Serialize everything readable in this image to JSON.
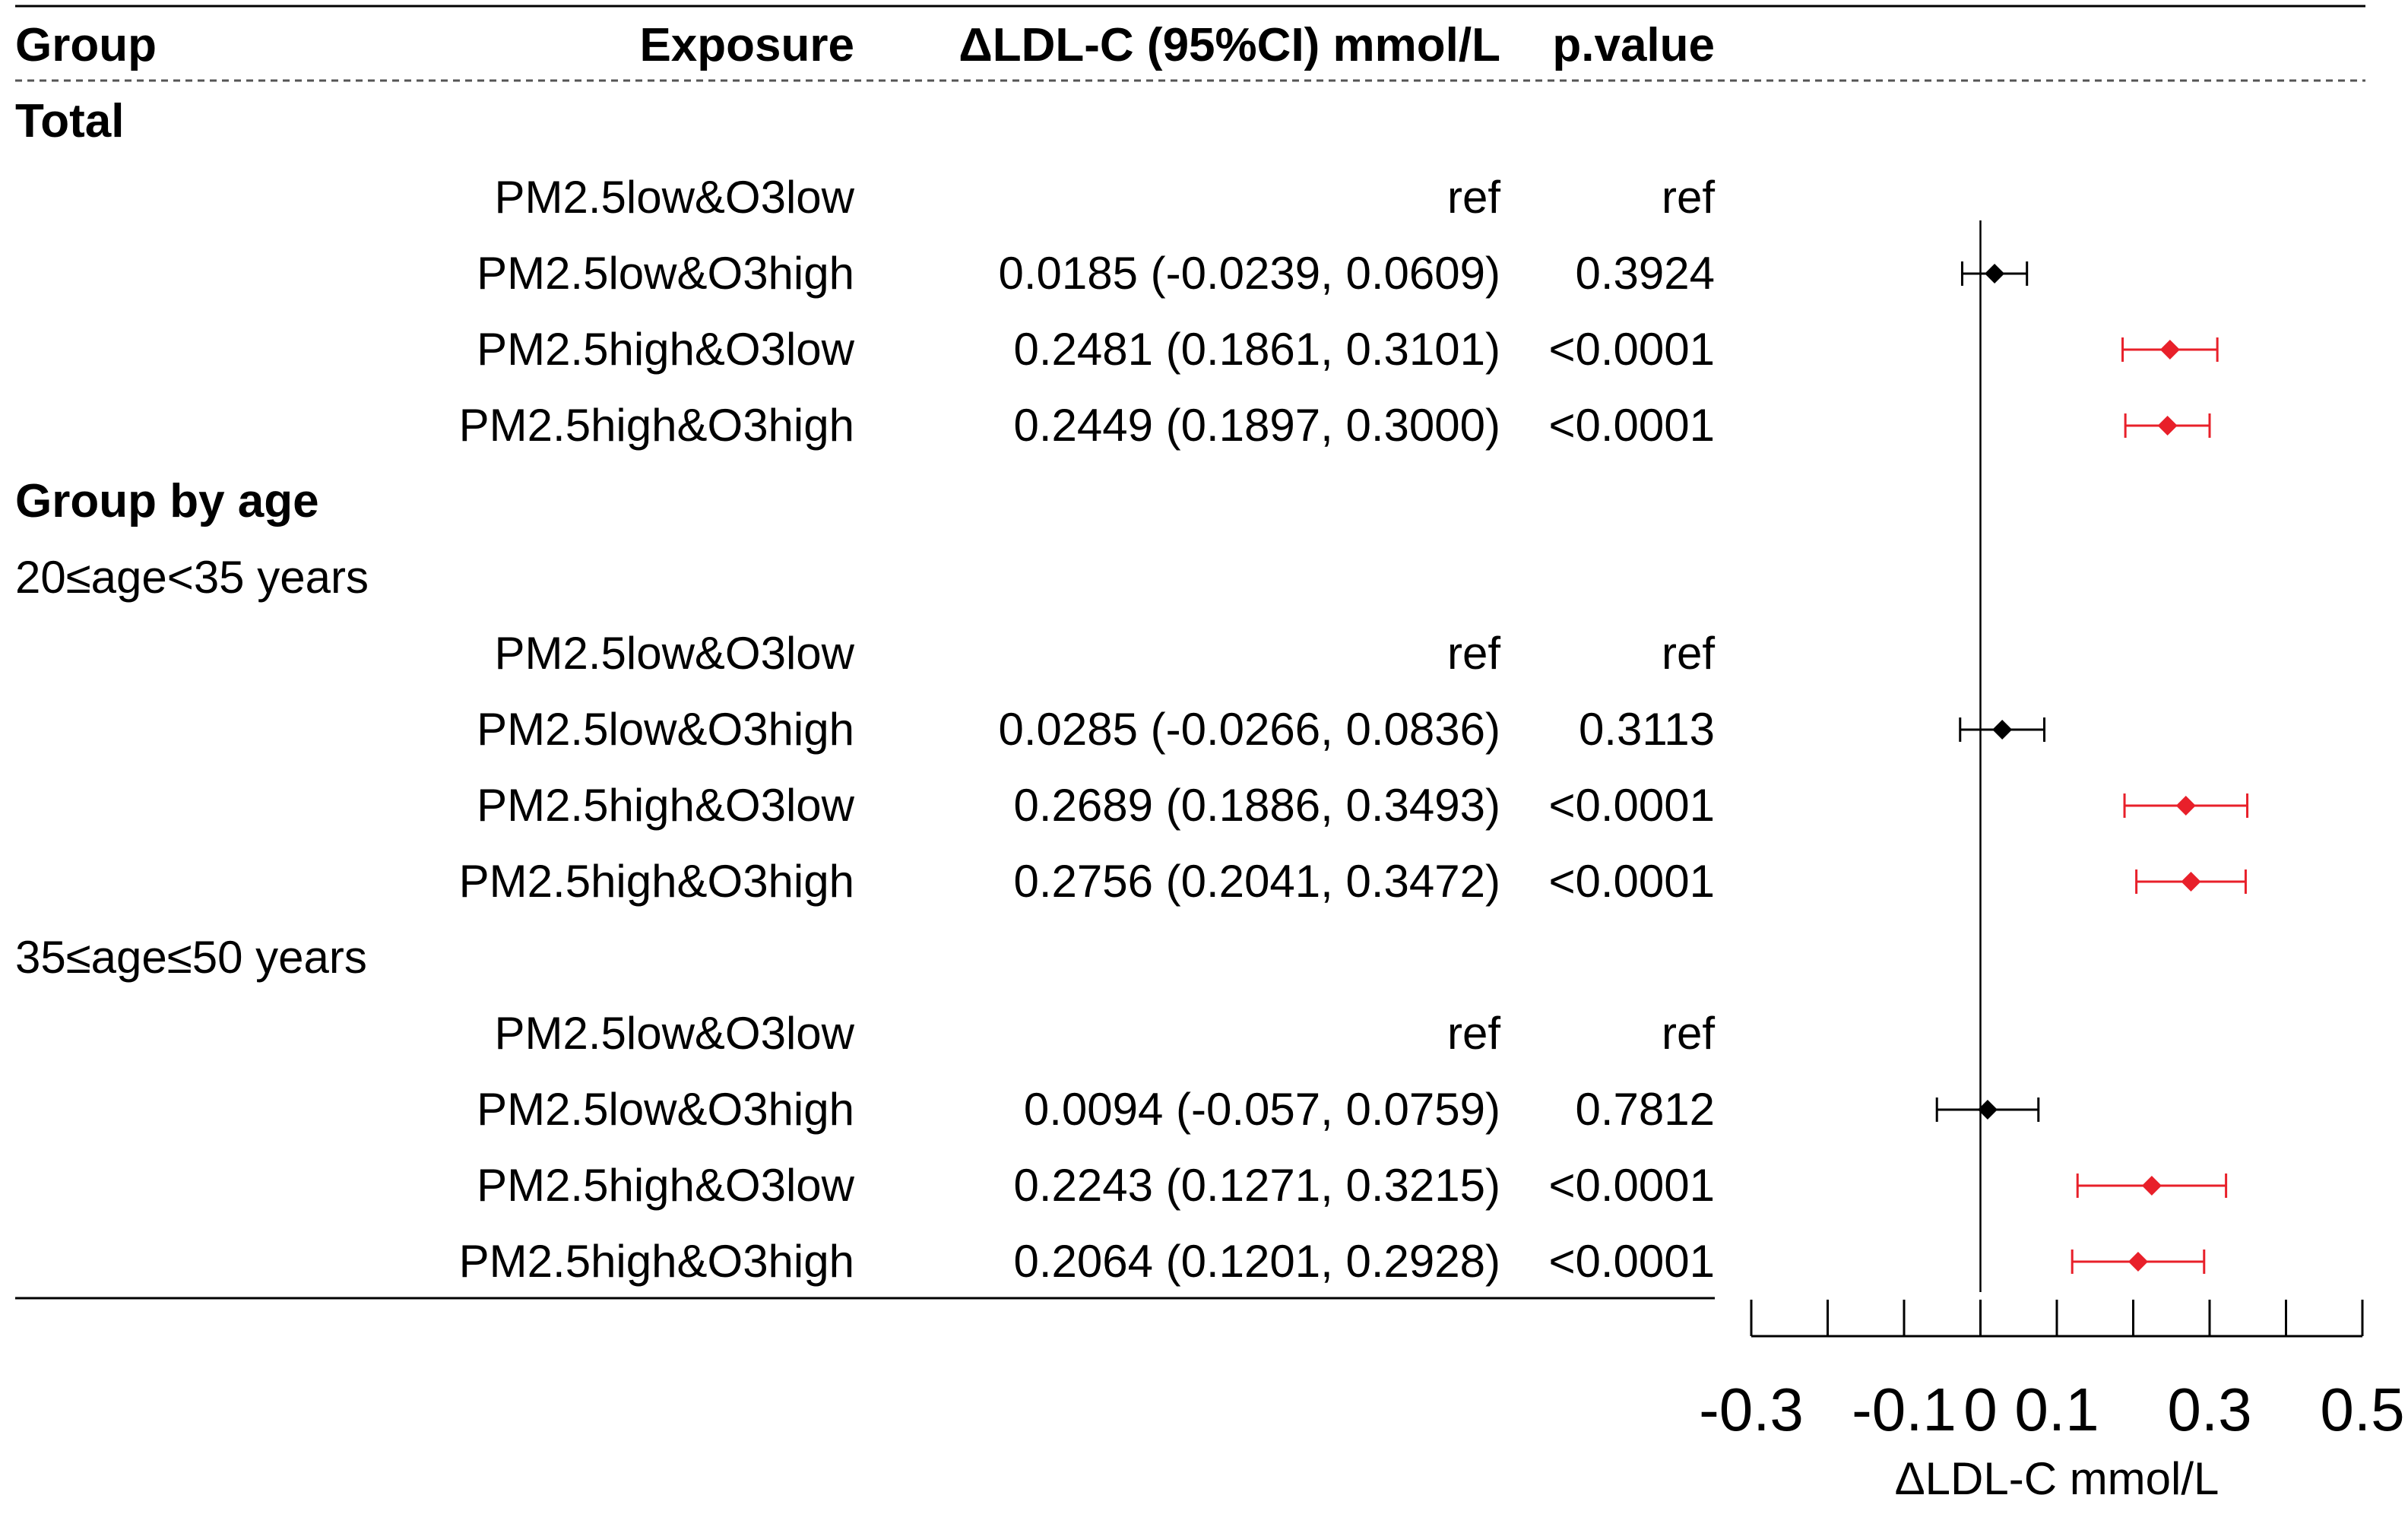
{
  "header": {
    "group": "Group",
    "exposure": "Exposure",
    "effect": "ΔLDL-C (95%CI) mmol/L",
    "pvalue": "p.value"
  },
  "chart_data": {
    "type": "forest",
    "xlabel": "ΔLDL-C mmol/L",
    "xlim": [
      -0.3,
      0.5
    ],
    "xticks": [
      -0.3,
      -0.2,
      -0.1,
      0,
      0.1,
      0.2,
      0.3,
      0.4,
      0.5
    ],
    "xtick_labels": [
      "-0.3",
      "",
      "-0.1",
      "0",
      "0.1",
      "",
      "0.3",
      "",
      "0.5"
    ],
    "reference_line": 0,
    "colors": {
      "significant": "#e8202a",
      "nonsignificant": "#000000"
    },
    "rows": [
      {
        "kind": "section",
        "label": "Total"
      },
      {
        "kind": "item",
        "exposure": "PM2.5low&O3low",
        "effect_text": "ref",
        "p": "ref"
      },
      {
        "kind": "item",
        "exposure": "PM2.5low&O3high",
        "effect_text": "0.0185 (-0.0239, 0.0609)",
        "p": "0.3924",
        "est": 0.0185,
        "lo": -0.0239,
        "hi": 0.0609,
        "sig": false
      },
      {
        "kind": "item",
        "exposure": "PM2.5high&O3low",
        "effect_text": "0.2481 (0.1861, 0.3101)",
        "p": "<0.0001",
        "est": 0.2481,
        "lo": 0.1861,
        "hi": 0.3101,
        "sig": true
      },
      {
        "kind": "item",
        "exposure": "PM2.5high&O3high",
        "effect_text": "0.2449 (0.1897, 0.3000)",
        "p": "<0.0001",
        "est": 0.2449,
        "lo": 0.1897,
        "hi": 0.3,
        "sig": true
      },
      {
        "kind": "section",
        "label": "Group by age"
      },
      {
        "kind": "subgroup",
        "label": "20≤age<35 years"
      },
      {
        "kind": "item",
        "exposure": "PM2.5low&O3low",
        "effect_text": "ref",
        "p": "ref"
      },
      {
        "kind": "item",
        "exposure": "PM2.5low&O3high",
        "effect_text": "0.0285 (-0.0266, 0.0836)",
        "p": "0.3113",
        "est": 0.0285,
        "lo": -0.0266,
        "hi": 0.0836,
        "sig": false
      },
      {
        "kind": "item",
        "exposure": "PM2.5high&O3low",
        "effect_text": "0.2689 (0.1886, 0.3493)",
        "p": "<0.0001",
        "est": 0.2689,
        "lo": 0.1886,
        "hi": 0.3493,
        "sig": true
      },
      {
        "kind": "item",
        "exposure": "PM2.5high&O3high",
        "effect_text": "0.2756 (0.2041, 0.3472)",
        "p": "<0.0001",
        "est": 0.2756,
        "lo": 0.2041,
        "hi": 0.3472,
        "sig": true
      },
      {
        "kind": "subgroup",
        "label": "35≤age≤50 years"
      },
      {
        "kind": "item",
        "exposure": "PM2.5low&O3low",
        "effect_text": "ref",
        "p": "ref"
      },
      {
        "kind": "item",
        "exposure": "PM2.5low&O3high",
        "effect_text": "0.0094 (-0.057, 0.0759)",
        "p": "0.7812",
        "est": 0.0094,
        "lo": -0.057,
        "hi": 0.0759,
        "sig": false
      },
      {
        "kind": "item",
        "exposure": "PM2.5high&O3low",
        "effect_text": "0.2243 (0.1271, 0.3215)",
        "p": "<0.0001",
        "est": 0.2243,
        "lo": 0.1271,
        "hi": 0.3215,
        "sig": true
      },
      {
        "kind": "item",
        "exposure": "PM2.5high&O3high",
        "effect_text": "0.2064 (0.1201, 0.2928)",
        "p": "<0.0001",
        "est": 0.2064,
        "lo": 0.1201,
        "hi": 0.2928,
        "sig": true
      }
    ]
  }
}
